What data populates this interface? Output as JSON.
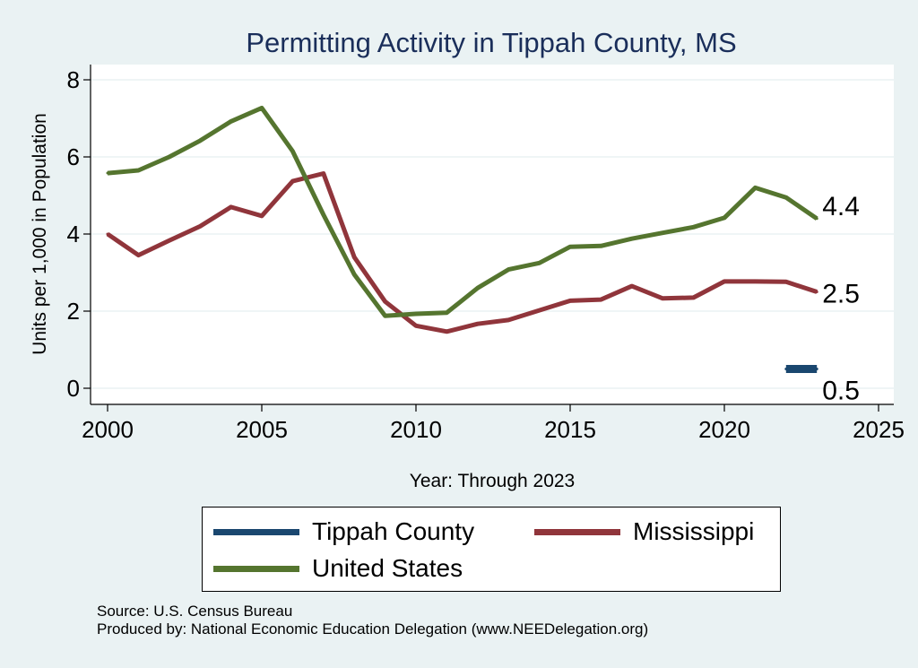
{
  "chart_data": {
    "type": "line",
    "title": "Permitting Activity in Tippah County, MS",
    "xlabel": "Year: Through 2023",
    "ylabel": "Units per 1,000 in Population",
    "xlim": [
      2000,
      2025
    ],
    "ylim": [
      0,
      8
    ],
    "x_ticks": [
      "2000",
      "2005",
      "2010",
      "2015",
      "2020",
      "2025"
    ],
    "y_ticks": [
      "0",
      "2",
      "4",
      "6",
      "8"
    ],
    "grid": true,
    "series": [
      {
        "name": "Tippah County",
        "color": "#1a476f",
        "x": [
          2022,
          2023
        ],
        "values": [
          0.5,
          0.5
        ],
        "end_label": "0.5"
      },
      {
        "name": "Mississippi",
        "color": "#90353b",
        "x": [
          2000,
          2001,
          2002,
          2003,
          2004,
          2005,
          2006,
          2007,
          2008,
          2009,
          2010,
          2011,
          2012,
          2013,
          2014,
          2015,
          2016,
          2017,
          2018,
          2019,
          2020,
          2021,
          2022,
          2023
        ],
        "values": [
          4.0,
          3.45,
          3.83,
          4.2,
          4.7,
          4.47,
          5.37,
          5.57,
          3.4,
          2.25,
          1.62,
          1.47,
          1.67,
          1.77,
          2.02,
          2.27,
          2.3,
          2.65,
          2.33,
          2.35,
          2.77,
          2.77,
          2.76,
          2.5
        ],
        "end_label": "2.5"
      },
      {
        "name": "United States",
        "color": "#55752f",
        "x": [
          2000,
          2001,
          2002,
          2003,
          2004,
          2005,
          2006,
          2007,
          2008,
          2009,
          2010,
          2011,
          2012,
          2013,
          2014,
          2015,
          2016,
          2017,
          2018,
          2019,
          2020,
          2021,
          2022,
          2023
        ],
        "values": [
          5.58,
          5.65,
          6.0,
          6.42,
          6.92,
          7.27,
          6.15,
          4.5,
          2.95,
          1.88,
          1.93,
          1.96,
          2.6,
          3.08,
          3.25,
          3.67,
          3.69,
          3.88,
          4.03,
          4.18,
          4.42,
          5.2,
          4.95,
          4.4
        ],
        "end_label": "4.4"
      }
    ],
    "legend": {
      "position": "bottom"
    }
  },
  "footer": {
    "source": "Source: U.S. Census Bureau",
    "produced_by": "Produced by: National Economic Education Delegation (www.NEEDelegation.org)"
  }
}
